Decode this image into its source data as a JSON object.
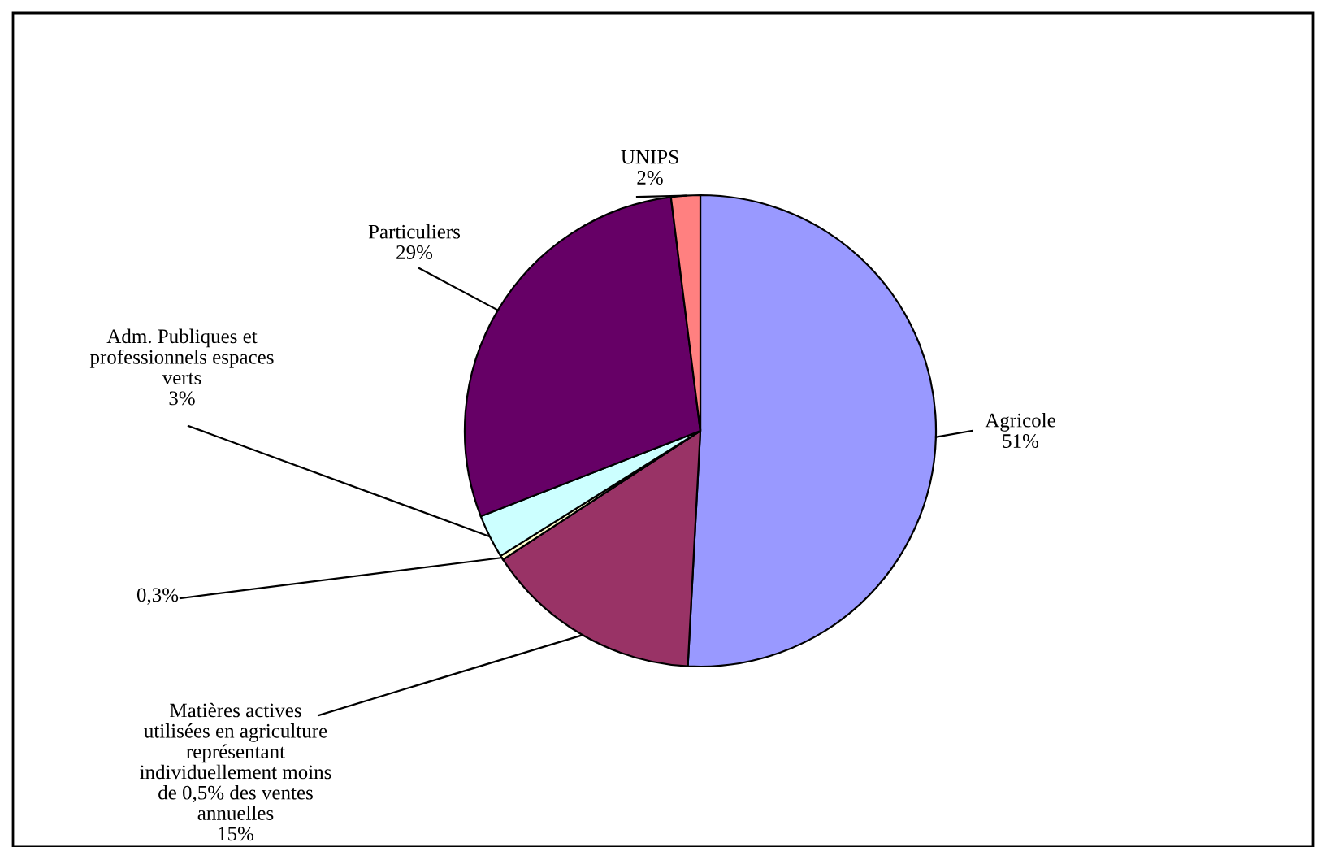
{
  "chart_data": {
    "type": "pie",
    "categories": [
      "Agricole",
      "Matières actives utilisées en agriculture représentant individuellement moins de 0,5% des ventes annuelles",
      null,
      "Adm. Publiques et professionnels espaces verts",
      "Particuliers",
      "UNIPS"
    ],
    "values": [
      51,
      15,
      0.3,
      3,
      29,
      2
    ],
    "value_labels": [
      "51%",
      "15%",
      "0,3%",
      "3%",
      "29%",
      "2%"
    ],
    "colors": [
      "#9999ff",
      "#993366",
      "#ffffcc",
      "#ccffff",
      "#660066",
      "#ff8080"
    ]
  }
}
